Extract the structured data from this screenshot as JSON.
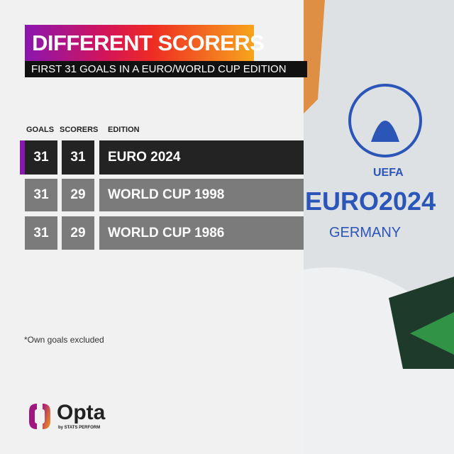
{
  "title": "DIFFERENT SCORERS",
  "subtitle": "FIRST 31 GOALS IN A EURO/WORLD CUP EDITION",
  "columns": {
    "goals": "GOALS",
    "scorers": "SCORERS",
    "edition": "EDITION"
  },
  "rows": [
    {
      "goals": "31",
      "scorers": "31",
      "edition": "EURO 2024",
      "highlight": true
    },
    {
      "goals": "31",
      "scorers": "29",
      "edition": "WORLD CUP 1998",
      "highlight": false
    },
    {
      "goals": "31",
      "scorers": "29",
      "edition": "WORLD CUP 1986",
      "highlight": false
    }
  ],
  "footnote": "*Own goals excluded",
  "logo": {
    "name": "Opta",
    "byline": "by STATS PERFORM"
  },
  "photo": {
    "brand": "UEFA",
    "event": "EURO2024",
    "host": "GERMANY"
  },
  "colors": {
    "highlight_row": "#232323",
    "row": "#7b7b7b",
    "accent": "#8a16b0"
  }
}
